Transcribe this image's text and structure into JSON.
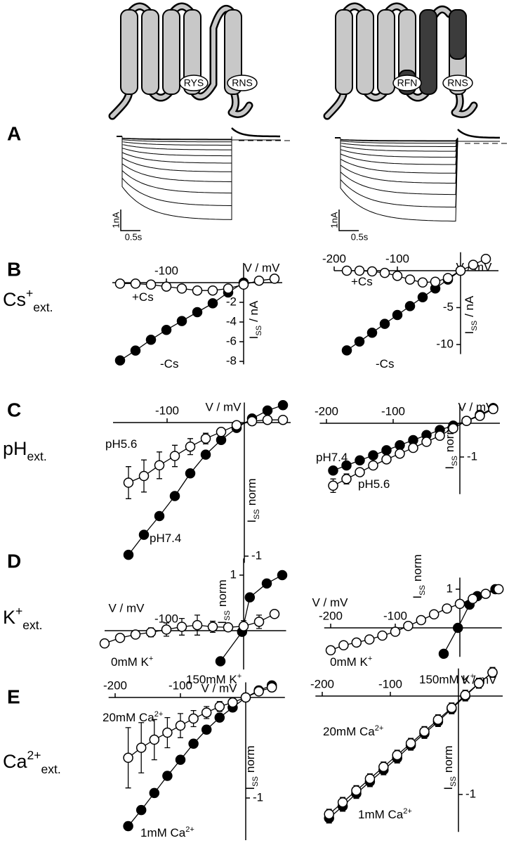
{
  "figure": {
    "panel_labels": [
      "A",
      "B",
      "C",
      "D",
      "E"
    ],
    "cartoon_labels": [
      "RYS",
      "RNS",
      "RFN",
      "RNS"
    ],
    "scale_bars": [
      {
        "current": "1nA",
        "time": "0.5s"
      },
      {
        "current": "1nA",
        "time": "0.5s"
      }
    ]
  },
  "chart_data": [
    {
      "type": "line",
      "row_label": {
        "base": "Cs",
        "sup": "+",
        "sub": "ext."
      },
      "xlabel": "V / mV",
      "ylabel": {
        "base": "I",
        "sub": "SS",
        "unit": "/ nA"
      },
      "xlim": [
        -170,
        50
      ],
      "ylim": [
        -8.3,
        2
      ],
      "xticks": [
        -100
      ],
      "yticks": [
        -2,
        -4,
        -6,
        -8
      ],
      "series": [
        {
          "name": [
            "-Cs"
          ],
          "color": "#000000",
          "x": [
            -160,
            -140,
            -120,
            -100,
            -80,
            -60,
            -40,
            -20,
            0
          ],
          "values": [
            -7.9,
            -6.9,
            -5.8,
            -4.8,
            -3.9,
            -3.0,
            -2.1,
            -1.0,
            0
          ]
        },
        {
          "name": [
            "+Cs"
          ],
          "color": "#ffffff",
          "x": [
            -160,
            -140,
            -120,
            -100,
            -80,
            -60,
            -40,
            -20,
            0,
            20,
            40
          ],
          "values": [
            -0.1,
            -0.1,
            -0.2,
            -0.4,
            -0.6,
            -0.8,
            -0.8,
            -0.6,
            -0.2,
            0.2,
            0.4
          ]
        }
      ]
    },
    {
      "type": "line",
      "xlabel": "V / mV",
      "ylabel": {
        "base": "I",
        "sub": "SS",
        "unit": "/ nA"
      },
      "xlim": [
        -200,
        60
      ],
      "ylim": [
        -11.3,
        2.5
      ],
      "xticks": [
        -200,
        -100
      ],
      "yticks": [
        -5,
        -10
      ],
      "series": [
        {
          "name": [
            "-Cs"
          ],
          "color": "#000000",
          "x": [
            -180,
            -160,
            -140,
            -120,
            -100,
            -80,
            -60,
            -40,
            -20,
            0
          ],
          "values": [
            -10.8,
            -9.6,
            -8.4,
            -7.2,
            -6,
            -4.8,
            -3.6,
            -2.4,
            -1.2,
            0
          ]
        },
        {
          "name": [
            "+Cs"
          ],
          "color": "#ffffff",
          "x": [
            -180,
            -160,
            -140,
            -120,
            -100,
            -80,
            -60,
            -40,
            -20,
            0,
            20,
            40
          ],
          "values": [
            0,
            0,
            -0.1,
            -0.3,
            -0.7,
            -1.2,
            -1.6,
            -1.5,
            -1.0,
            0,
            0.8,
            1.6
          ]
        }
      ]
    },
    {
      "type": "line",
      "row_label": {
        "base": "pH",
        "sub": "ext."
      },
      "xlabel": "V / mV",
      "ylabel": {
        "base": "I",
        "sub": "SS",
        "unit": "norm"
      },
      "xlim": [
        -170,
        60
      ],
      "ylim": [
        -1.05,
        0.15
      ],
      "xticks": [
        -100
      ],
      "yticks": [
        -1
      ],
      "series": [
        {
          "name": [
            "pH7.4"
          ],
          "color": "#000000",
          "x": [
            -150,
            -130,
            -110,
            -90,
            -70,
            -50,
            -30,
            -10,
            10,
            30,
            50
          ],
          "values": [
            -0.99,
            -0.84,
            -0.7,
            -0.55,
            -0.38,
            -0.24,
            -0.13,
            -0.04,
            0.03,
            0.09,
            0.13
          ],
          "errors": [
            0.02,
            0.02,
            0.02,
            0.02,
            0.02,
            0.02,
            0.02,
            0.02,
            0.02,
            0.02,
            0.03
          ]
        },
        {
          "name": [
            "pH5.6"
          ],
          "color": "#ffffff",
          "x": [
            -150,
            -130,
            -110,
            -90,
            -70,
            -50,
            -30,
            -10,
            10,
            30,
            50
          ],
          "values": [
            -0.45,
            -0.4,
            -0.32,
            -0.25,
            -0.18,
            -0.12,
            -0.07,
            -0.02,
            0.01,
            0.02,
            0.02
          ],
          "errors": [
            0.12,
            0.12,
            0.1,
            0.08,
            0.06,
            0.04,
            0.03,
            0.02,
            0.02,
            0.02,
            0.02
          ]
        }
      ]
    },
    {
      "type": "line",
      "xlabel": "V / mV",
      "ylabel": {
        "base": "I",
        "sub": "SS",
        "unit": "norm"
      },
      "xlim": [
        -210,
        60
      ],
      "ylim": [
        -2.1,
        0.55
      ],
      "xticks": [
        -200,
        -100
      ],
      "yticks": [
        -1
      ],
      "series": [
        {
          "name": [
            "pH7.4"
          ],
          "color": "#000000",
          "x": [
            -190,
            -170,
            -150,
            -130,
            -110,
            -90,
            -70,
            -50,
            -30,
            -10,
            10,
            30,
            50
          ],
          "values": [
            -1.4,
            -1.25,
            -1.1,
            -0.95,
            -0.8,
            -0.65,
            -0.5,
            -0.35,
            -0.2,
            -0.07,
            0.07,
            0.25,
            0.45
          ],
          "errors": [
            0.05,
            0.05,
            0.05,
            0.05,
            0.05,
            0.05,
            0.05,
            0.05,
            0.05,
            0.05,
            0.05,
            0.05,
            0.05
          ]
        },
        {
          "name": [
            "pH5.6"
          ],
          "color": "#ffffff",
          "x": [
            -190,
            -170,
            -150,
            -130,
            -110,
            -90,
            -70,
            -50,
            -30,
            -10,
            10,
            30,
            50
          ],
          "values": [
            -1.85,
            -1.65,
            -1.45,
            -1.25,
            -1.07,
            -0.9,
            -0.73,
            -0.55,
            -0.37,
            -0.15,
            0.07,
            0.22,
            0.42
          ],
          "errors": [
            0.2,
            0.15,
            0.1,
            0.08,
            0.06,
            0.05,
            0.04,
            0.04,
            0.03,
            0.03,
            0.03,
            0.05,
            0.08
          ]
        }
      ]
    },
    {
      "type": "line",
      "row_label": {
        "base": "K",
        "sup": "+",
        "sub": "ext."
      },
      "xlabel": "V / mV",
      "ylabel": {
        "base": "I",
        "sub": "SS",
        "unit": "norm"
      },
      "xlim": [
        -180,
        55
      ],
      "ylim": [
        -0.7,
        1.3
      ],
      "xticks": [
        -100
      ],
      "yticks": [
        1
      ],
      "series": [
        {
          "name": [
            "150mM K",
            "+"
          ],
          "color": "#000000",
          "x": [
            -30,
            -2,
            8,
            30,
            50
          ],
          "values": [
            -0.55,
            -0.02,
            0.6,
            0.85,
            1.0
          ],
          "errors": [
            0.03,
            0.03,
            0.05,
            0.06,
            0.03
          ]
        },
        {
          "name": [
            "0mM K",
            "+"
          ],
          "color": "#ffffff",
          "x": [
            -180,
            -160,
            -140,
            -120,
            -100,
            -80,
            -60,
            -40,
            -20,
            0,
            20,
            40
          ],
          "values": [
            -0.23,
            -0.13,
            -0.07,
            -0.03,
            0.02,
            0.07,
            0.1,
            0.07,
            0.06,
            0.08,
            0.16,
            0.3
          ],
          "errors": [
            0.03,
            0.04,
            0.05,
            0.08,
            0.12,
            0.15,
            0.18,
            0.1,
            0.06,
            0.1,
            0.12,
            0.05
          ]
        }
      ]
    },
    {
      "type": "line",
      "xlabel": "V / mV",
      "ylabel": {
        "base": "I",
        "sub": "SS",
        "unit": "norm"
      },
      "xlim": [
        -210,
        65
      ],
      "ylim": [
        -0.75,
        1.3
      ],
      "xticks": [
        -200,
        -100
      ],
      "yticks": [
        1
      ],
      "series": [
        {
          "name": [
            "150mM K",
            "+"
          ],
          "color": "#000000",
          "x": [
            -25,
            -3,
            15,
            27,
            55
          ],
          "values": [
            -0.67,
            0,
            0.6,
            0.82,
            1.0
          ],
          "errors": [
            0.03,
            0.03,
            0.04,
            0.04,
            0.05
          ]
        },
        {
          "name": [
            "0mM K",
            "+"
          ],
          "color": "#ffffff",
          "x": [
            -200,
            -180,
            -160,
            -140,
            -120,
            -100,
            -80,
            -60,
            -40,
            -20,
            0,
            20,
            40,
            60
          ],
          "values": [
            -0.58,
            -0.45,
            -0.38,
            -0.3,
            -0.2,
            -0.1,
            0.05,
            0.2,
            0.35,
            0.5,
            0.62,
            0.75,
            0.88,
            1.0
          ],
          "errors": [
            0.1,
            0.08,
            0.06,
            0.05,
            0.05,
            0.05,
            0.05,
            0.06,
            0.06,
            0.08,
            0.1,
            0.1,
            0.1,
            0.05
          ]
        }
      ]
    },
    {
      "type": "line",
      "row_label": {
        "base": "Ca",
        "sup": "2+",
        "sub": "ext."
      },
      "xlabel": "V / mV",
      "ylabel": {
        "base": "I",
        "sub": "SS",
        "unit": "norm"
      },
      "xlim": [
        -210,
        60
      ],
      "ylim": [
        -1.42,
        0.15
      ],
      "xticks": [
        -200,
        -100
      ],
      "yticks": [
        -1
      ],
      "series": [
        {
          "name": [
            "1mM Ca",
            "2+"
          ],
          "color": "#000000",
          "x": [
            -180,
            -160,
            -140,
            -120,
            -100,
            -80,
            -60,
            -40,
            -20,
            0,
            20,
            40
          ],
          "values": [
            -1.28,
            -1.12,
            -0.95,
            -0.78,
            -0.62,
            -0.46,
            -0.32,
            -0.2,
            -0.1,
            0,
            0.07,
            0.12
          ],
          "errors": [
            0.04,
            0.04,
            0.04,
            0.04,
            0.04,
            0.04,
            0.04,
            0.04,
            0.04,
            0.04,
            0.04,
            0.04
          ]
        },
        {
          "name": [
            "20mM Ca",
            "2+"
          ],
          "color": "#ffffff",
          "x": [
            -180,
            -160,
            -140,
            -120,
            -100,
            -80,
            -60,
            -40,
            -20,
            0,
            20,
            40
          ],
          "values": [
            -0.6,
            -0.5,
            -0.42,
            -0.35,
            -0.28,
            -0.21,
            -0.15,
            -0.09,
            -0.05,
            0,
            0.06,
            0.1
          ],
          "errors": [
            0.3,
            0.25,
            0.2,
            0.15,
            0.12,
            0.08,
            0.06,
            0.05,
            0.04,
            0.03,
            0.03,
            0.04
          ]
        }
      ]
    },
    {
      "type": "line",
      "xlabel": "V / mV",
      "ylabel": {
        "base": "I",
        "sub": "SS",
        "unit": "norm"
      },
      "xlim": [
        -210,
        65
      ],
      "ylim": [
        -1.38,
        0.28
      ],
      "xticks": [
        -200,
        -100
      ],
      "yticks": [
        -1
      ],
      "series": [
        {
          "name": [
            "1mM Ca",
            "2+"
          ],
          "color": "#000000",
          "x": [
            -190,
            -170,
            -150,
            -130,
            -110,
            -90,
            -70,
            -50,
            -30,
            -10,
            10,
            30,
            50
          ],
          "values": [
            -1.24,
            -1.12,
            -0.99,
            -0.87,
            -0.75,
            -0.63,
            -0.5,
            -0.38,
            -0.26,
            -0.13,
            0,
            0.13,
            0.24
          ],
          "errors": [
            0.05,
            0.05,
            0.05,
            0.05,
            0.05,
            0.05,
            0.05,
            0.05,
            0.05,
            0.05,
            0.05,
            0.05,
            0.05
          ]
        },
        {
          "name": [
            "20mM Ca",
            "2+"
          ],
          "color": "#ffffff",
          "x": [
            -190,
            -170,
            -150,
            -130,
            -110,
            -90,
            -70,
            -50,
            -30,
            -10,
            10,
            30,
            50
          ],
          "values": [
            -1.2,
            -1.08,
            -0.96,
            -0.84,
            -0.72,
            -0.6,
            -0.48,
            -0.36,
            -0.24,
            -0.12,
            0.01,
            0.13,
            0.24
          ],
          "errors": [
            0.05,
            0.05,
            0.05,
            0.05,
            0.05,
            0.05,
            0.05,
            0.05,
            0.05,
            0.05,
            0.05,
            0.05,
            0.05
          ]
        }
      ]
    }
  ]
}
